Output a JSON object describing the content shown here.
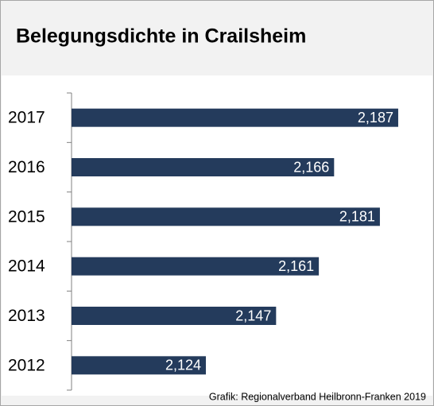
{
  "chart_data": {
    "type": "barh",
    "title": "Belegungsdichte in Crailsheim",
    "categories": [
      "2017",
      "2016",
      "2015",
      "2014",
      "2013",
      "2012"
    ],
    "values": [
      2.187,
      2.166,
      2.181,
      2.161,
      2.147,
      2.124
    ],
    "value_labels": [
      "2,187",
      "2,166",
      "2,181",
      "2,161",
      "2,147",
      "2,124"
    ],
    "color": "#243b5c",
    "xlim": [
      2.08,
      2.19
    ],
    "source": "Grafik: Regionalverband Heilbronn-Franken 2019"
  }
}
